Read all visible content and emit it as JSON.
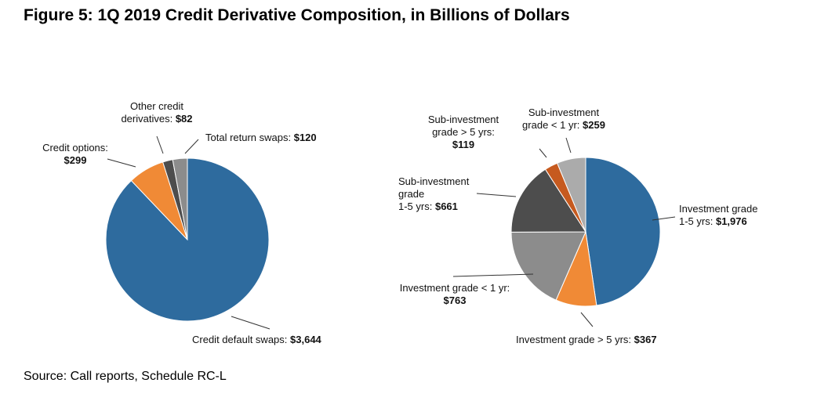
{
  "title": "Figure 5: 1Q 2019 Credit Derivative Composition, in Billions of Dollars",
  "source": "Source: Call reports, Schedule RC-L",
  "colors": {
    "blue": "#2e6b9e",
    "orange": "#f08a36",
    "dark_gray": "#4d4d4d",
    "mid_gray": "#8c8c8c",
    "light_gray": "#ababab",
    "rust": "#c65a1f",
    "leader": "#333333"
  },
  "chart_data": [
    {
      "type": "pie",
      "title": "",
      "slices": [
        {
          "name": "Credit default swaps",
          "value": 3644,
          "display": "$3,644",
          "color": "#2e6b9e",
          "label_lines": [],
          "value_line": "Credit default swaps: "
        },
        {
          "name": "Credit options",
          "value": 299,
          "display": "$299",
          "color": "#f08a36",
          "label_lines": [
            "Credit options:"
          ],
          "value_line": ""
        },
        {
          "name": "Other credit derivatives",
          "value": 82,
          "display": "$82",
          "color": "#4d4d4d",
          "label_lines": [
            "Other credit"
          ],
          "value_line": "derivatives: "
        },
        {
          "name": "Total return swaps",
          "value": 120,
          "display": "$120",
          "color": "#8c8c8c",
          "label_lines": [],
          "value_line": "Total return swaps: "
        }
      ]
    },
    {
      "type": "pie",
      "title": "",
      "slices": [
        {
          "name": "Investment grade 1-5 yrs",
          "value": 1976,
          "display": "$1,976",
          "color": "#2e6b9e",
          "label_lines": [
            "Investment grade"
          ],
          "value_line": "1-5 yrs: "
        },
        {
          "name": "Investment grade > 5 yrs",
          "value": 367,
          "display": "$367",
          "color": "#f08a36",
          "label_lines": [],
          "value_line": "Investment grade > 5 yrs: "
        },
        {
          "name": "Investment grade < 1 yr",
          "value": 763,
          "display": "$763",
          "color": "#8c8c8c",
          "label_lines": [
            "Investment grade < 1 yr:"
          ],
          "value_line": ""
        },
        {
          "name": "Sub-investment grade 1-5 yrs",
          "value": 661,
          "display": "$661",
          "color": "#4d4d4d",
          "label_lines": [
            "Sub-investment",
            "grade"
          ],
          "value_line": "1-5 yrs: "
        },
        {
          "name": "Sub-investment grade > 5 yrs",
          "value": 119,
          "display": "$119",
          "color": "#c65a1f",
          "label_lines": [
            "Sub-investment",
            "grade > 5 yrs:"
          ],
          "value_line": ""
        },
        {
          "name": "Sub-investment grade < 1 yr",
          "value": 259,
          "display": "$259",
          "color": "#ababab",
          "label_lines": [
            "Sub-investment"
          ],
          "value_line": "grade  < 1 yr: "
        }
      ]
    }
  ]
}
